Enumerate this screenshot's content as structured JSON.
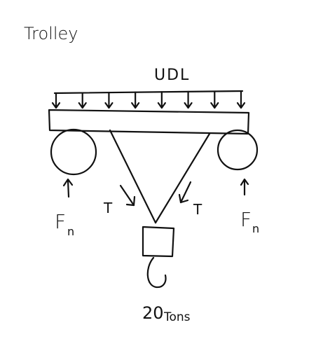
{
  "title": "Trolley",
  "udl_label": "UDL",
  "tension_label": "T",
  "normal_force": {
    "symbol": "F",
    "subscript": "n"
  },
  "load": {
    "value": "20",
    "unit": "Tons"
  },
  "ink_color": "#111111",
  "udl_arrow_count": 8
}
